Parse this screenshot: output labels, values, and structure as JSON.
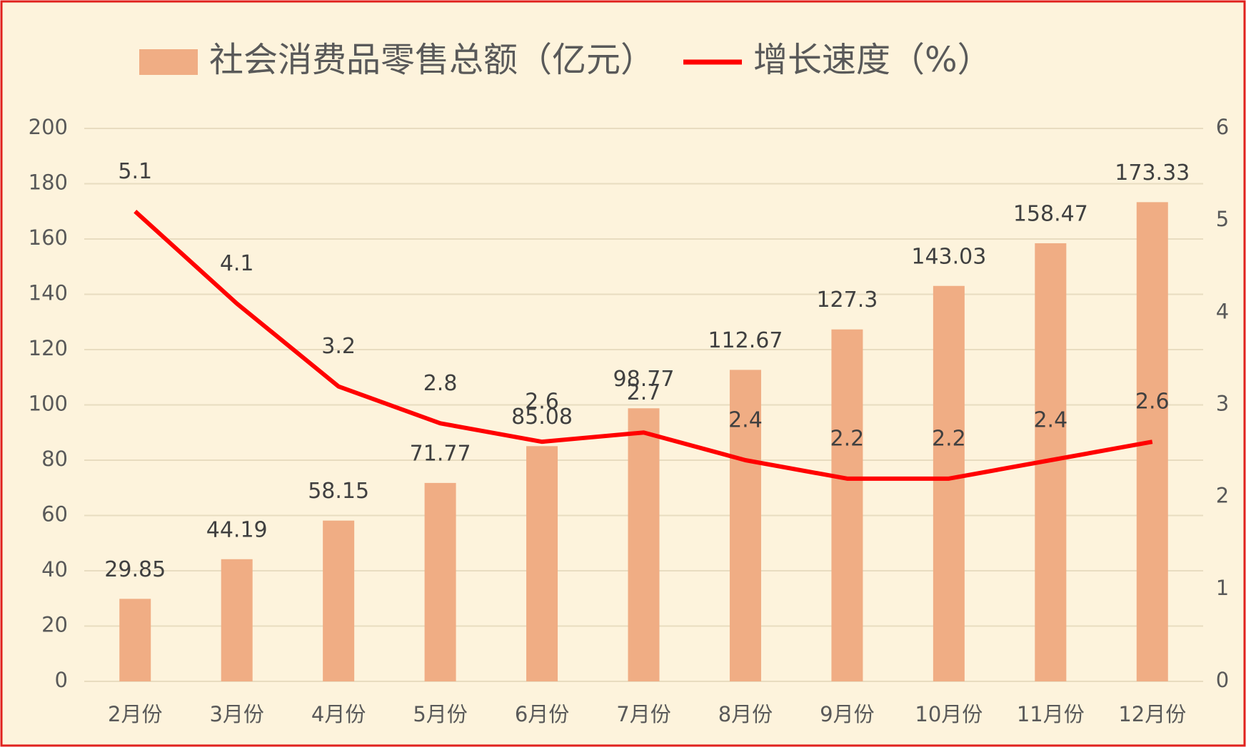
{
  "chart_data": {
    "type": "bar",
    "categories": [
      "2月份",
      "3月份",
      "4月份",
      "5月份",
      "6月份",
      "7月份",
      "8月份",
      "9月份",
      "10月份",
      "11月份",
      "12月份"
    ],
    "series": [
      {
        "name": "社会消费品零售总额（亿元）",
        "type": "bar",
        "color": "#f0ad84",
        "axis": "y",
        "values": [
          29.85,
          44.19,
          58.15,
          71.77,
          85.08,
          98.77,
          112.67,
          127.3,
          143.03,
          158.47,
          173.33
        ]
      },
      {
        "name": "增长速度（%）",
        "type": "line",
        "color": "#ff0000",
        "axis": "y2",
        "values": [
          5.1,
          4.1,
          3.2,
          2.8,
          2.6,
          2.7,
          2.4,
          2.2,
          2.2,
          2.4,
          2.6
        ]
      }
    ],
    "ylim": [
      0,
      200
    ],
    "yticks": [
      0,
      20,
      40,
      60,
      80,
      100,
      120,
      140,
      160,
      180,
      200
    ],
    "y2lim": [
      0,
      6
    ],
    "y2ticks": [
      0,
      1,
      2,
      3,
      4,
      5,
      6
    ],
    "grid": true,
    "legend": "top",
    "data_labels": true
  }
}
